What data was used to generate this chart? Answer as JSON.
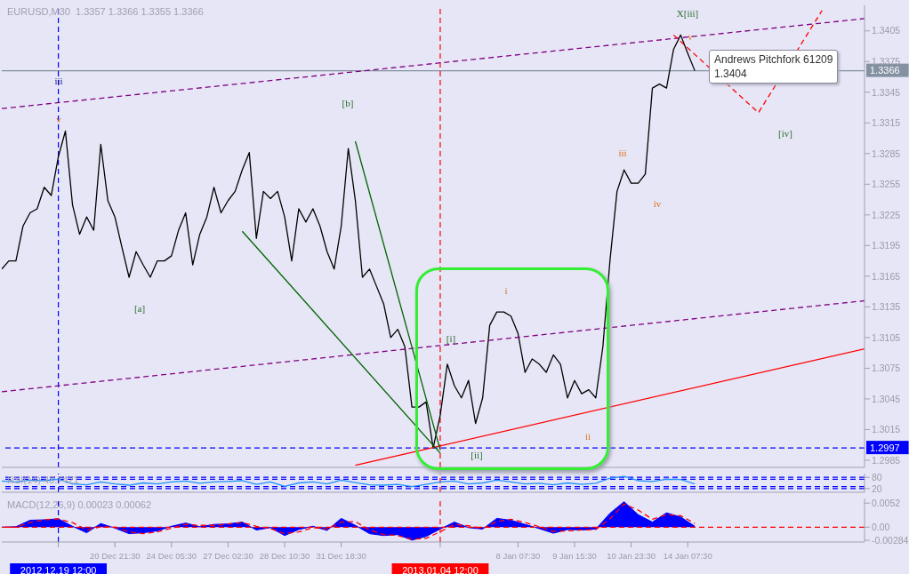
{
  "chart_data": [
    {
      "type": "line",
      "title": "EURUSD,M30  1.3357 1.3366 1.3355 1.3366",
      "categories": [
        null,
        null,
        null,
        null,
        null,
        null,
        null,
        null,
        "2012.12.19 12:00",
        null,
        null,
        null,
        null,
        null,
        null,
        null,
        "20 Dec 21:30",
        null,
        null,
        null,
        null,
        null,
        null,
        null,
        "24 Dec 05:30",
        null,
        null,
        null,
        null,
        null,
        null,
        null,
        "27 Dec 02:30",
        null,
        null,
        null,
        null,
        null,
        null,
        null,
        "28 Dec 10:30",
        null,
        null,
        null,
        null,
        null,
        null,
        null,
        "31 Dec 18:30",
        null,
        null,
        null,
        null,
        null,
        null,
        null,
        null,
        null,
        null,
        null,
        null,
        null,
        "2013.01.04 12:00",
        null,
        null,
        null,
        null,
        null,
        null,
        null,
        null,
        null,
        null,
        "8 Jan 07:30",
        null,
        null,
        null,
        null,
        null,
        null,
        null,
        "9 Jan 15:30",
        null,
        null,
        null,
        null,
        null,
        null,
        null,
        "10 Jan 23:30",
        null,
        null,
        null,
        null,
        null,
        null,
        null,
        "14 Jan 07:30",
        null,
        null,
        null,
        null,
        null,
        null,
        null,
        null,
        null,
        null,
        null,
        null,
        null,
        null,
        null,
        null,
        null,
        null,
        null,
        null,
        null,
        null,
        null,
        null,
        null
      ],
      "series": [
        {
          "color": "#000000",
          "values": [
            1.3172,
            1.318,
            1.318,
            1.3214,
            1.3227,
            1.3231,
            1.3252,
            1.3244,
            1.3282,
            1.3307,
            1.3235,
            1.3206,
            1.3223,
            1.321,
            1.3294,
            1.3239,
            1.3223,
            1.3193,
            1.3164,
            1.3189,
            1.3176,
            1.3164,
            1.318,
            1.318,
            1.3185,
            1.321,
            1.3227,
            1.3176,
            1.3206,
            1.3223,
            1.3252,
            1.3227,
            1.3239,
            1.3248,
            1.3269,
            1.3286,
            1.3202,
            1.3248,
            1.3241,
            1.3248,
            1.3223,
            1.318,
            1.3231,
            1.3218,
            1.3231,
            1.3214,
            1.3189,
            1.3172,
            1.3214,
            1.329,
            1.3239,
            1.3164,
            1.3172,
            1.3155,
            1.3138,
            1.3105,
            1.3113,
            1.3096,
            1.3037,
            1.3037,
            1.3042,
            1.2997,
            1.3029,
            1.3079,
            1.3058,
            1.3046,
            1.3063,
            1.3021,
            1.3046,
            1.3117,
            1.313,
            1.313,
            1.3126,
            1.3109,
            1.3071,
            1.3084,
            1.3079,
            1.3071,
            1.3088,
            1.3079,
            1.3046,
            1.3063,
            1.305,
            1.3054,
            1.3046,
            1.3096,
            1.318,
            1.3248,
            1.3269,
            1.3256,
            1.3256,
            1.3265,
            1.3349,
            1.3353,
            1.3349,
            1.3387,
            1.3401,
            1.3383,
            1.3366,
            null,
            null,
            null,
            null,
            null,
            null,
            null,
            null,
            null,
            null,
            null,
            null,
            null,
            null,
            null,
            null,
            null,
            null,
            null,
            null,
            null,
            null,
            null,
            null
          ]
        },
        {
          "color": "#800080",
          "line_style": "dashed",
          "values": [
            1.3329,
            null,
            null,
            null,
            null,
            null,
            null,
            null,
            null,
            null,
            null,
            null,
            null,
            null,
            null,
            null,
            null,
            null,
            null,
            null,
            null,
            null,
            null,
            null,
            null,
            null,
            null,
            null,
            null,
            null,
            null,
            null,
            null,
            null,
            null,
            null,
            null,
            null,
            null,
            null,
            null,
            null,
            null,
            null,
            null,
            null,
            null,
            null,
            null,
            null,
            null,
            null,
            null,
            null,
            null,
            null,
            null,
            null,
            null,
            null,
            null,
            null,
            null,
            null,
            null,
            null,
            null,
            null,
            null,
            null,
            null,
            null,
            null,
            null,
            null,
            null,
            null,
            null,
            null,
            null,
            null,
            null,
            null,
            null,
            null,
            null,
            null,
            null,
            null,
            null,
            null,
            null,
            null,
            null,
            null,
            null,
            null,
            null,
            null,
            null,
            null,
            null,
            null,
            null,
            null,
            null,
            null,
            null,
            null,
            null,
            null,
            null,
            null,
            null,
            null,
            null,
            null,
            null,
            null,
            null,
            null,
            null,
            1.3417
          ]
        },
        {
          "color": "#800080",
          "line_style": "dashed",
          "values": [
            1.3052,
            null,
            null,
            null,
            null,
            null,
            null,
            null,
            null,
            null,
            null,
            null,
            null,
            null,
            null,
            null,
            null,
            null,
            null,
            null,
            null,
            null,
            null,
            null,
            null,
            null,
            null,
            null,
            null,
            null,
            null,
            null,
            null,
            null,
            null,
            null,
            null,
            null,
            null,
            null,
            null,
            null,
            null,
            null,
            null,
            null,
            null,
            null,
            null,
            null,
            null,
            null,
            null,
            null,
            null,
            null,
            null,
            null,
            null,
            null,
            null,
            null,
            null,
            null,
            null,
            null,
            null,
            null,
            null,
            null,
            null,
            null,
            null,
            null,
            null,
            null,
            null,
            null,
            null,
            null,
            null,
            null,
            null,
            null,
            null,
            null,
            null,
            null,
            null,
            null,
            null,
            null,
            null,
            null,
            null,
            null,
            null,
            null,
            null,
            null,
            null,
            null,
            null,
            null,
            null,
            null,
            null,
            null,
            null,
            null,
            null,
            null,
            null,
            null,
            null,
            null,
            null,
            null,
            null,
            null,
            null,
            null,
            1.3141
          ]
        },
        {
          "color": "#ff0000",
          "values": [
            null,
            null,
            null,
            null,
            null,
            null,
            null,
            null,
            null,
            null,
            null,
            null,
            null,
            null,
            null,
            null,
            null,
            null,
            null,
            null,
            null,
            null,
            null,
            null,
            null,
            null,
            null,
            null,
            null,
            null,
            null,
            null,
            null,
            null,
            null,
            null,
            null,
            null,
            null,
            null,
            null,
            null,
            null,
            null,
            null,
            null,
            null,
            null,
            null,
            null,
            1.298,
            null,
            null,
            null,
            null,
            null,
            null,
            null,
            null,
            null,
            null,
            null,
            null,
            null,
            null,
            null,
            null,
            null,
            null,
            null,
            null,
            null,
            null,
            null,
            null,
            null,
            null,
            null,
            null,
            null,
            null,
            null,
            null,
            null,
            null,
            null,
            null,
            null,
            null,
            null,
            null,
            null,
            null,
            null,
            null,
            null,
            null,
            null,
            null,
            null,
            null,
            null,
            null,
            null,
            null,
            null,
            null,
            null,
            null,
            null,
            null,
            null,
            null,
            null,
            null,
            null,
            null,
            null,
            null,
            null,
            null,
            null,
            1.3094
          ]
        },
        {
          "color": "#006400",
          "values": [
            null,
            null,
            null,
            null,
            null,
            null,
            null,
            null,
            null,
            null,
            null,
            null,
            null,
            null,
            null,
            null,
            null,
            null,
            null,
            null,
            null,
            null,
            null,
            null,
            null,
            null,
            null,
            null,
            null,
            null,
            null,
            null,
            null,
            null,
            1.3209,
            null,
            null,
            null,
            null,
            null,
            null,
            null,
            null,
            null,
            null,
            null,
            null,
            null,
            null,
            null,
            null,
            null,
            null,
            null,
            null,
            null,
            null,
            null,
            null,
            null,
            null,
            null,
            1.2992,
            null,
            null,
            null,
            null,
            null,
            null,
            null,
            null,
            null,
            null,
            null,
            null,
            null,
            null,
            null,
            null,
            null,
            null,
            null,
            null,
            null,
            null,
            null,
            null,
            null,
            null,
            null,
            null,
            null,
            null,
            null,
            null,
            null,
            null,
            null,
            null,
            null,
            null,
            null,
            null,
            null,
            null,
            null,
            null,
            null,
            null,
            null,
            null,
            null,
            null,
            null,
            null,
            null,
            null,
            null,
            null,
            null,
            null,
            null,
            null
          ]
        },
        {
          "color": "#006400",
          "values": [
            null,
            null,
            null,
            null,
            null,
            null,
            null,
            null,
            null,
            null,
            null,
            null,
            null,
            null,
            null,
            null,
            null,
            null,
            null,
            null,
            null,
            null,
            null,
            null,
            null,
            null,
            null,
            null,
            null,
            null,
            null,
            null,
            null,
            null,
            null,
            null,
            null,
            null,
            null,
            null,
            null,
            null,
            null,
            null,
            null,
            null,
            null,
            null,
            null,
            null,
            1.3297,
            null,
            null,
            null,
            null,
            null,
            null,
            null,
            null,
            null,
            null,
            null,
            1.2995,
            null,
            null,
            null,
            null,
            null,
            null,
            null,
            null,
            null,
            null,
            null,
            null,
            null,
            null,
            null,
            null,
            null,
            null,
            null,
            null,
            null,
            null,
            null,
            null,
            null,
            null,
            null,
            null,
            null,
            null,
            null,
            null,
            null,
            null,
            null,
            null,
            null,
            null,
            null,
            null,
            null,
            null,
            null,
            null,
            null,
            null,
            null,
            null,
            null,
            null,
            null,
            null,
            null,
            null,
            null,
            null,
            null,
            null,
            null,
            null
          ]
        },
        {
          "color": "#ff0000",
          "line_style": "dashed",
          "values": [
            null,
            null,
            null,
            null,
            null,
            null,
            null,
            null,
            null,
            null,
            null,
            null,
            null,
            null,
            null,
            null,
            null,
            null,
            null,
            null,
            null,
            null,
            null,
            null,
            null,
            null,
            null,
            null,
            null,
            null,
            null,
            null,
            null,
            null,
            null,
            null,
            null,
            null,
            null,
            null,
            null,
            null,
            null,
            null,
            null,
            null,
            null,
            null,
            null,
            null,
            null,
            null,
            null,
            null,
            null,
            null,
            null,
            null,
            null,
            null,
            null,
            null,
            null,
            null,
            null,
            null,
            null,
            null,
            null,
            null,
            null,
            null,
            null,
            null,
            null,
            null,
            null,
            null,
            null,
            null,
            null,
            null,
            null,
            null,
            null,
            null,
            null,
            null,
            null,
            null,
            null,
            null,
            null,
            null,
            null,
            1.3401,
            null,
            null,
            null,
            null,
            null,
            null,
            null,
            null,
            null,
            null,
            null,
            1.3325,
            null,
            null,
            null,
            null,
            null,
            null,
            null,
            null,
            1.3425,
            null,
            null,
            null,
            null,
            null,
            null
          ]
        }
      ],
      "ylim": [
        1.2978,
        1.343
      ],
      "yticks": [
        1.2985,
        1.3015,
        1.3045,
        1.3075,
        1.3105,
        1.3135,
        1.3165,
        1.3195,
        1.3225,
        1.3255,
        1.3285,
        1.3315,
        1.3345,
        1.3375,
        1.3405
      ],
      "tick_labels": "y",
      "ref_lines": [
        {
          "axis": "y",
          "value": 1.3366,
          "label": "1.3366",
          "color": "#8391a0",
          "line_style": "solid"
        },
        {
          "axis": "y",
          "value": 1.2997,
          "label": "1.2997",
          "color": "#0000ff",
          "line_style": "dashed"
        },
        {
          "axis": "x",
          "value": "2012.12.19 12:00",
          "color": "#0000ff",
          "line_style": "dashed"
        },
        {
          "axis": "x",
          "value": "2013.01.04 12:00",
          "color": "#ff0000",
          "line_style": "dashed"
        }
      ],
      "annotations": [
        "iii",
        "v",
        "[b]",
        "[a]",
        "[i]",
        "[ii]",
        "i",
        "ii",
        "iii",
        "iv",
        "v",
        "X[iii]",
        "[iv]",
        "Andrews Pitchfork 61209\n1.3404"
      ]
    },
    {
      "type": "line",
      "title": "RSI(14) 43.7421",
      "categories": [
        null,
        null,
        null,
        null,
        null,
        null,
        null,
        null,
        "2012.12.19 12:00",
        null,
        null,
        null,
        null,
        null,
        null,
        null,
        "20 Dec 21:30",
        null,
        null,
        null,
        null,
        null,
        null,
        null,
        "24 Dec 05:30",
        null,
        null,
        null,
        null,
        null,
        null,
        null,
        "27 Dec 02:30",
        null,
        null,
        null,
        null,
        null,
        null,
        null,
        "28 Dec 10:30",
        null,
        null,
        null,
        null,
        null,
        null,
        null,
        "31 Dec 18:30",
        null,
        null,
        null,
        null,
        null,
        null,
        null,
        null,
        null,
        null,
        null,
        null,
        null,
        "2013.01.04 12:00",
        null,
        null,
        null,
        null,
        null,
        null,
        null,
        null,
        null,
        null,
        "8 Jan 07:30",
        null,
        null,
        null,
        null,
        null,
        null,
        null,
        "9 Jan 15:30",
        null,
        null,
        null,
        null,
        null,
        null,
        null,
        "10 Jan 23:30",
        null,
        null,
        null,
        null,
        null,
        null,
        null,
        "14 Jan 07:30",
        null,
        null,
        null,
        null,
        null,
        null,
        null,
        null,
        null,
        null,
        null,
        null,
        null,
        null,
        null,
        null,
        null,
        null,
        null,
        null,
        null,
        null,
        null,
        null,
        null
      ],
      "series": [
        {
          "color": "#1e90ff",
          "values": [
            60,
            null,
            55,
            null,
            65,
            null,
            62,
            null,
            70,
            null,
            45,
            null,
            40,
            null,
            55,
            null,
            45,
            null,
            38,
            null,
            50,
            null,
            45,
            null,
            55,
            null,
            60,
            null,
            48,
            null,
            55,
            null,
            58,
            null,
            62,
            null,
            42,
            null,
            55,
            null,
            32,
            null,
            50,
            null,
            55,
            null,
            45,
            null,
            65,
            null,
            52,
            null,
            40,
            null,
            38,
            null,
            42,
            null,
            30,
            null,
            42,
            null,
            55,
            null,
            60,
            null,
            45,
            null,
            50,
            null,
            65,
            null,
            55,
            null,
            45,
            null,
            48,
            null,
            40,
            null,
            50,
            null,
            42,
            null,
            48,
            null,
            75,
            null,
            85,
            null,
            62,
            null,
            58,
            null,
            70,
            null,
            68,
            null,
            45,
            null,
            null,
            null,
            null,
            null,
            null,
            null,
            null,
            null,
            null,
            null,
            null,
            null,
            null,
            null,
            null,
            null,
            null,
            null,
            null,
            null,
            null,
            null,
            null
          ]
        }
      ],
      "ylim": [
        0,
        100
      ],
      "yticks": [
        20,
        80
      ],
      "tick_labels": "y",
      "ref_lines": [
        {
          "axis": "y",
          "value": 80,
          "color": "#0000ff",
          "line_style": "dashed"
        },
        {
          "axis": "y",
          "value": 70,
          "color": "#0000ff",
          "line_style": "dashed"
        },
        {
          "axis": "y",
          "value": 30,
          "color": "#0000ff",
          "line_style": "dashed"
        },
        {
          "axis": "y",
          "value": 20,
          "color": "#0000ff",
          "line_style": "dashed"
        },
        {
          "axis": "x",
          "value": "2012.12.19 12:00",
          "color": "#0000ff",
          "line_style": "dashed"
        },
        {
          "axis": "x",
          "value": "2013.01.04 12:00",
          "color": "#ff0000",
          "line_style": "dashed"
        }
      ]
    },
    {
      "type": "area",
      "title": "MACD(12,26,9) 0.00023 0.00062",
      "categories": [
        null,
        null,
        null,
        null,
        null,
        null,
        null,
        null,
        "2012.12.19 12:00",
        null,
        null,
        null,
        null,
        null,
        null,
        null,
        "20 Dec 21:30",
        null,
        null,
        null,
        null,
        null,
        null,
        null,
        "24 Dec 05:30",
        null,
        null,
        null,
        null,
        null,
        null,
        null,
        "27 Dec 02:30",
        null,
        null,
        null,
        null,
        null,
        null,
        null,
        "28 Dec 10:30",
        null,
        null,
        null,
        null,
        null,
        null,
        null,
        "31 Dec 18:30",
        null,
        null,
        null,
        null,
        null,
        null,
        null,
        null,
        null,
        null,
        null,
        null,
        null,
        "2013.01.04 12:00",
        null,
        null,
        null,
        null,
        null,
        null,
        null,
        null,
        null,
        null,
        "8 Jan 07:30",
        null,
        null,
        null,
        null,
        null,
        null,
        null,
        "9 Jan 15:30",
        null,
        null,
        null,
        null,
        null,
        null,
        null,
        "10 Jan 23:30",
        null,
        null,
        null,
        null,
        null,
        null,
        null,
        "14 Jan 07:30",
        null,
        null,
        null,
        null,
        null,
        null,
        null,
        null,
        null,
        null,
        null,
        null,
        null,
        null,
        null,
        null,
        null,
        null,
        null,
        null,
        null,
        null,
        null,
        null,
        null
      ],
      "series": [
        {
          "color": "#0000ff",
          "values": [
            0,
            null,
            0.0001,
            null,
            0.0015,
            null,
            0.0016,
            null,
            0.0018,
            null,
            0.0002,
            null,
            -0.0012,
            null,
            0.0008,
            null,
            -0.0002,
            null,
            -0.0014,
            null,
            -0.0012,
            null,
            -0.0008,
            null,
            0.0002,
            null,
            0.0009,
            null,
            0.0001,
            null,
            0.0006,
            null,
            0.0007,
            null,
            0.0011,
            null,
            -0.0006,
            null,
            -0.0001,
            null,
            -0.0018,
            null,
            -0.0005,
            null,
            0.0002,
            null,
            -0.0007,
            null,
            0.0019,
            null,
            0.0004,
            null,
            -0.0014,
            null,
            -0.0018,
            null,
            -0.0016,
            null,
            -0.0028,
            null,
            -0.002,
            null,
            -0.0004,
            null,
            0.0011,
            null,
            -0.0001,
            null,
            -0.0004,
            null,
            0.0019,
            null,
            0.0015,
            null,
            0.0006,
            null,
            -0.0003,
            null,
            -0.0013,
            null,
            -0.0005,
            null,
            -0.0006,
            null,
            -0.0004,
            null,
            0.003,
            null,
            0.0055,
            null,
            0.0027,
            null,
            0.0011,
            null,
            0.0031,
            null,
            0.0022,
            null,
            0.0002,
            null,
            null,
            null,
            null,
            null,
            null,
            null,
            null,
            null,
            null,
            null,
            null,
            null,
            null,
            null,
            null,
            null,
            null,
            null,
            null,
            null,
            null,
            null,
            null
          ]
        },
        {
          "type": "line",
          "color": "#ff0000",
          "line_style": "dashed",
          "values": [
            0,
            null,
            0,
            null,
            0.001,
            null,
            0.0016,
            null,
            0.0018,
            null,
            0.001,
            null,
            -0.0006,
            null,
            0.0001,
            null,
            0,
            null,
            -0.001,
            null,
            -0.0014,
            null,
            -0.001,
            null,
            -0.0002,
            null,
            0.0006,
            null,
            0.0004,
            null,
            0.0004,
            null,
            0.0007,
            null,
            0.001,
            null,
            0.0002,
            null,
            -0.0003,
            null,
            -0.0014,
            null,
            -0.001,
            null,
            -0.0001,
            null,
            -0.0004,
            null,
            0.0011,
            null,
            0.0012,
            null,
            -0.0006,
            null,
            -0.0016,
            null,
            -0.0018,
            null,
            -0.0026,
            null,
            -0.0024,
            null,
            -0.001,
            null,
            0.0006,
            null,
            0.0003,
            null,
            -0.0003,
            null,
            0.0012,
            null,
            0.0017,
            null,
            0.001,
            null,
            0.0001,
            null,
            -0.0009,
            null,
            -0.0008,
            null,
            -0.0006,
            null,
            -0.0005,
            null,
            0.0018,
            null,
            0.005,
            null,
            0.0037,
            null,
            0.0017,
            null,
            0.0027,
            null,
            0.0025,
            null,
            0.0008,
            null,
            null,
            null,
            null,
            null,
            null,
            null,
            null,
            null,
            null,
            null,
            null,
            null,
            null,
            null,
            null,
            null,
            null,
            null,
            null,
            null,
            null,
            null,
            null
          ]
        }
      ],
      "ylim": [
        -0.0032,
        0.0062
      ],
      "yticks": [
        -0.00284,
        {
          "value": 0,
          "label": "0.00"
        },
        0.0052
      ],
      "ref_lines": [
        {
          "axis": "y",
          "value": 0,
          "color": "#ff0000",
          "line_style": "dashed"
        },
        {
          "axis": "x",
          "value": "2012.12.19 12:00",
          "color": "#0000ff",
          "line_style": "dashed"
        },
        {
          "axis": "x",
          "value": "2013.01.04 12:00",
          "color": "#ff0000",
          "line_style": "dashed"
        }
      ]
    }
  ]
}
